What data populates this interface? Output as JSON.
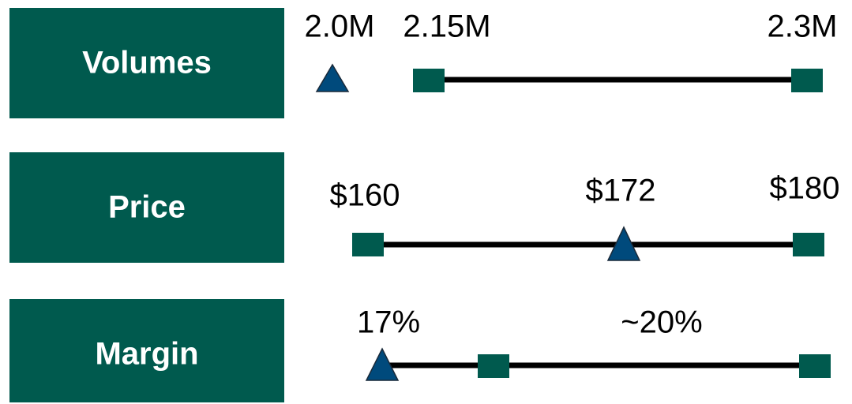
{
  "rows": [
    {
      "label": "Volumes",
      "values": [
        "2.0M",
        "2.15M",
        "2.3M"
      ]
    },
    {
      "label": "Price",
      "values": [
        "$160",
        "$172",
        "$180"
      ]
    },
    {
      "label": "Margin",
      "values": [
        "17%",
        "~20%"
      ]
    }
  ]
}
